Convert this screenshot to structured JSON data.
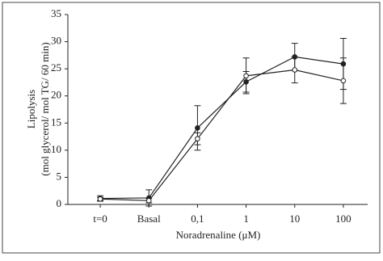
{
  "chart_data": {
    "type": "line",
    "y_label": [
      "Lipolysis",
      "(mol glycerol/ mol TG/ 60 min)"
    ],
    "x_label": "Noradrenaline (μM)",
    "categories": [
      "t=0",
      "Basal",
      "0,1",
      "1",
      "10",
      "100"
    ],
    "series": [
      {
        "marker": "filled",
        "color": "#222222",
        "values": [
          1.1,
          1.2,
          14.1,
          22.6,
          27.2,
          25.9
        ],
        "errors": [
          0.5,
          1.5,
          4.1,
          1.9,
          2.5,
          4.7
        ]
      },
      {
        "marker": "open",
        "color": "#222222",
        "values": [
          1.0,
          0.7,
          12.1,
          23.7,
          24.8,
          22.8
        ],
        "errors": [
          0.3,
          0.4,
          1.1,
          3.3,
          2.4,
          4.2
        ]
      }
    ],
    "ylim": [
      0,
      35
    ],
    "yticks": [
      0,
      5,
      10,
      15,
      20,
      25,
      30,
      35
    ]
  }
}
